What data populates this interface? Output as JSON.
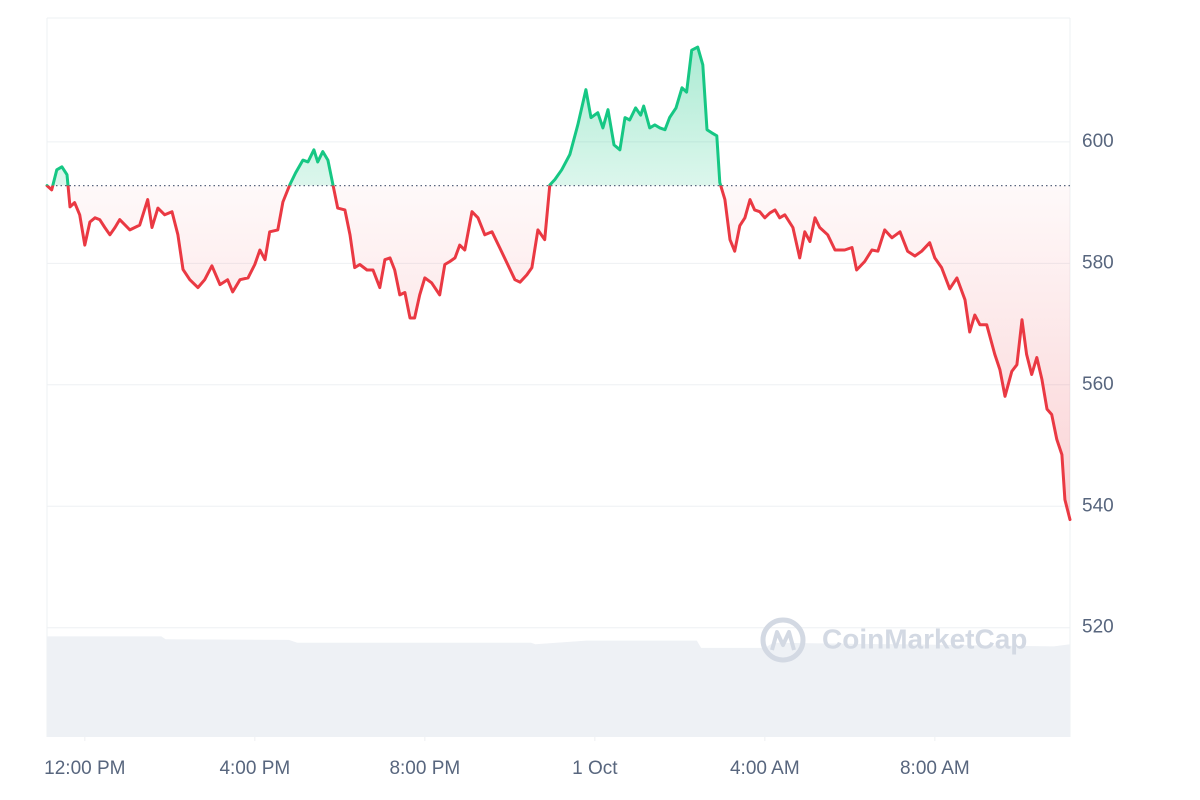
{
  "chart_data": {
    "type": "line",
    "watermark": "CoinMarketCap",
    "x": [
      -0.89,
      -0.78,
      -0.66,
      -0.54,
      -0.42,
      -0.35,
      -0.24,
      -0.12,
      0,
      0.12,
      0.24,
      0.35,
      0.47,
      0.59,
      0.71,
      0.82,
      1.06,
      1.29,
      1.48,
      1.58,
      1.72,
      1.88,
      2.05,
      2.19,
      2.31,
      2.47,
      2.66,
      2.82,
      2.99,
      3.18,
      3.36,
      3.48,
      3.65,
      3.84,
      4.0,
      4.12,
      4.24,
      4.35,
      4.54,
      4.66,
      4.82,
      4.96,
      5.13,
      5.25,
      5.39,
      5.48,
      5.6,
      5.72,
      5.84,
      5.95,
      6.12,
      6.24,
      6.35,
      6.47,
      6.64,
      6.78,
      6.94,
      7.06,
      7.18,
      7.29,
      7.41,
      7.53,
      7.65,
      7.76,
      7.88,
      8.0,
      8.16,
      8.35,
      8.47,
      8.59,
      8.71,
      8.82,
      8.94,
      9.11,
      9.25,
      9.41,
      9.58,
      9.76,
      9.95,
      10.12,
      10.24,
      10.4,
      10.52,
      10.66,
      10.82,
      10.94,
      11.06,
      11.22,
      11.41,
      11.6,
      11.79,
      11.91,
      12.07,
      12.19,
      12.31,
      12.45,
      12.59,
      12.71,
      12.82,
      12.96,
      13.08,
      13.15,
      13.29,
      13.41,
      13.53,
      13.65,
      13.76,
      13.91,
      14.05,
      14.16,
      14.28,
      14.42,
      14.54,
      14.64,
      14.75,
      14.87,
      14.94,
      15.06,
      15.18,
      15.29,
      15.41,
      15.53,
      15.65,
      15.76,
      15.88,
      16.0,
      16.12,
      16.24,
      16.35,
      16.47,
      16.66,
      16.82,
      16.94,
      17.06,
      17.18,
      17.29,
      17.48,
      17.65,
      17.88,
      18.05,
      18.16,
      18.35,
      18.52,
      18.66,
      18.82,
      18.99,
      19.18,
      19.36,
      19.53,
      19.69,
      19.88,
      20.0,
      20.16,
      20.35,
      20.52,
      20.71,
      20.82,
      20.94,
      21.06,
      21.22,
      21.41,
      21.53,
      21.65,
      21.81,
      21.93,
      22.05,
      22.16,
      22.28,
      22.4,
      22.52,
      22.64,
      22.75,
      22.87,
      22.99,
      23.06,
      23.18
    ],
    "values": [
      592.8,
      592.1,
      595.4,
      595.9,
      594.6,
      589.3,
      590,
      588,
      583,
      586.8,
      587.5,
      587.2,
      585.9,
      584.7,
      585.9,
      587.2,
      585.5,
      586.3,
      590.5,
      585.9,
      589.1,
      588,
      588.5,
      584.7,
      579,
      577.3,
      576,
      577.3,
      579.6,
      576.5,
      577.3,
      575.3,
      577.3,
      577.6,
      579.8,
      582.2,
      580.6,
      585.2,
      585.5,
      590.1,
      592.9,
      594.9,
      597,
      596.7,
      598.7,
      596.7,
      598.4,
      597,
      592.9,
      589.1,
      588.8,
      584.7,
      579.3,
      579.8,
      578.9,
      578.9,
      576,
      580.6,
      580.9,
      578.9,
      574.8,
      575.2,
      571,
      571,
      574.8,
      577.6,
      576.8,
      574.8,
      579.8,
      580.3,
      580.9,
      583,
      582.2,
      588.5,
      587.5,
      584.7,
      585.2,
      582.6,
      579.8,
      577.3,
      576.9,
      578.1,
      579.3,
      585.5,
      583.9,
      592.9,
      593.8,
      595.4,
      597.9,
      602.8,
      608.6,
      604,
      604.8,
      602.3,
      605.3,
      599.5,
      598.7,
      604,
      603.6,
      605.6,
      604.4,
      605.9,
      602.3,
      602.8,
      602.3,
      602,
      604,
      605.6,
      608.9,
      608.2,
      615.1,
      615.6,
      612.7,
      602,
      601.5,
      601,
      593.3,
      590.5,
      583.9,
      582,
      586.2,
      587.5,
      590.5,
      588.8,
      588.5,
      587.5,
      588.3,
      588.8,
      587.5,
      588,
      585.9,
      580.9,
      585.2,
      583.6,
      587.5,
      585.9,
      584.7,
      582.2,
      582.2,
      582.6,
      578.9,
      580.3,
      582.2,
      582,
      585.5,
      584.2,
      585.2,
      582,
      581.2,
      582,
      583.4,
      580.9,
      579.3,
      575.8,
      577.6,
      574,
      568.7,
      571.5,
      569.9,
      569.9,
      565,
      562.5,
      558.1,
      562.2,
      563.3,
      570.7,
      565,
      561.7,
      564.5,
      560.9,
      556,
      555.1,
      551,
      548.5,
      541.1,
      537.8
    ],
    "baseline": 592.8,
    "up_color": "#16c784",
    "down_color": "#ea3943",
    "volume": {
      "axis": "y2",
      "color": "#eef1f5",
      "x": [
        -0.89,
        1.8,
        1.9,
        4.8,
        5.0,
        10.5,
        10.6,
        11.8,
        14.4,
        14.5,
        16.0,
        16.2,
        20.5,
        22.8,
        23.18
      ],
      "values": [
        14.0,
        14.0,
        13.6,
        13.5,
        13.1,
        13.1,
        12.9,
        13.4,
        13.4,
        12.4,
        12.4,
        13.1,
        12.8,
        12.6,
        12.9
      ]
    },
    "xlim": [
      -0.89,
      23.18
    ],
    "xticks": [
      {
        "value": 0,
        "label": "12:00 PM"
      },
      {
        "value": 4,
        "label": "4:00 PM"
      },
      {
        "value": 8,
        "label": "8:00 PM"
      },
      {
        "value": 12,
        "label": "1 Oct"
      },
      {
        "value": 16,
        "label": "4:00 AM"
      },
      {
        "value": 20,
        "label": "8:00 AM"
      }
    ],
    "ylim": [
      502,
      620.4
    ],
    "yticks": [
      520,
      540,
      560,
      580,
      600
    ],
    "y2lim": [
      0,
      100
    ],
    "grid": true
  }
}
